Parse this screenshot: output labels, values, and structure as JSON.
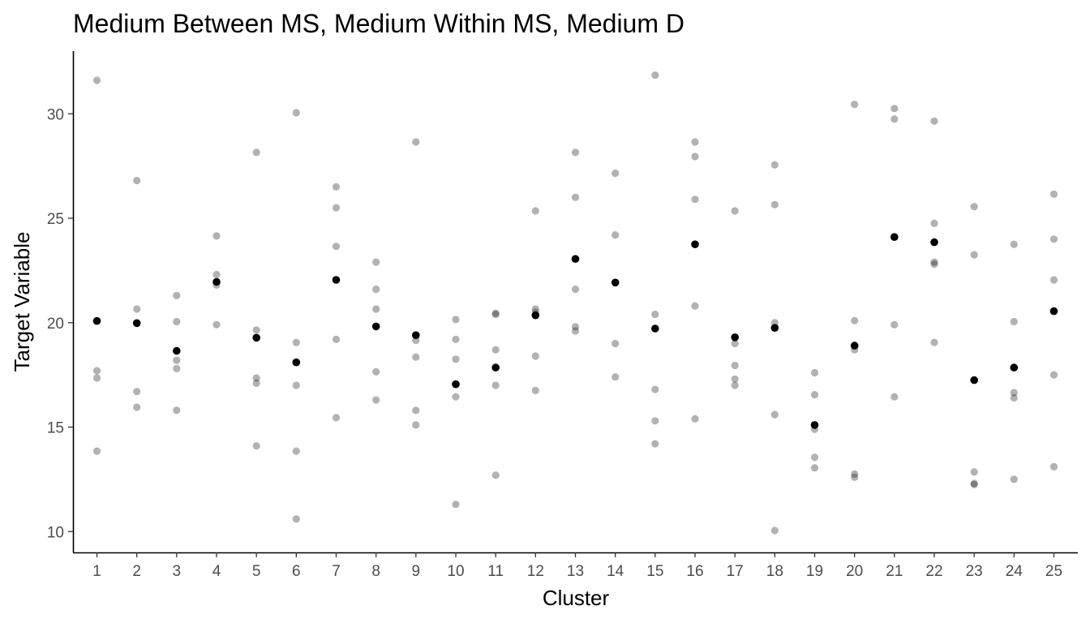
{
  "chart_data": {
    "type": "scatter",
    "title": "Medium Between MS, Medium Within MS, Medium D",
    "xlabel": "Cluster",
    "ylabel": "Target Variable",
    "xlim": [
      0.4,
      25.6
    ],
    "ylim": [
      9.0,
      33.0
    ],
    "x_ticks": [
      1,
      2,
      3,
      4,
      5,
      6,
      7,
      8,
      9,
      10,
      11,
      12,
      13,
      14,
      15,
      16,
      17,
      18,
      19,
      20,
      21,
      22,
      23,
      24,
      25
    ],
    "y_ticks": [
      10,
      15,
      20,
      25,
      30
    ],
    "grid": false,
    "colors": {
      "observation": "#b3b3b3",
      "cluster_mean": "#000000"
    },
    "observations": [
      [
        1,
        31.6
      ],
      [
        1,
        17.7
      ],
      [
        1,
        17.35
      ],
      [
        1,
        13.85
      ],
      [
        2,
        26.8
      ],
      [
        2,
        20.65
      ],
      [
        2,
        16.7
      ],
      [
        2,
        15.95
      ],
      [
        3,
        21.3
      ],
      [
        3,
        20.05
      ],
      [
        3,
        18.2
      ],
      [
        3,
        17.8
      ],
      [
        3,
        15.8
      ],
      [
        4,
        24.15
      ],
      [
        4,
        22.3
      ],
      [
        4,
        21.8
      ],
      [
        4,
        19.9
      ],
      [
        5,
        28.15
      ],
      [
        5,
        19.65
      ],
      [
        5,
        17.35
      ],
      [
        5,
        17.1
      ],
      [
        5,
        14.1
      ],
      [
        6,
        30.05
      ],
      [
        6,
        19.05
      ],
      [
        6,
        17.0
      ],
      [
        6,
        13.85
      ],
      [
        6,
        10.6
      ],
      [
        7,
        26.5
      ],
      [
        7,
        25.5
      ],
      [
        7,
        23.65
      ],
      [
        7,
        19.2
      ],
      [
        7,
        15.45
      ],
      [
        8,
        22.9
      ],
      [
        8,
        21.6
      ],
      [
        8,
        20.65
      ],
      [
        8,
        17.65
      ],
      [
        8,
        16.3
      ],
      [
        9,
        28.65
      ],
      [
        9,
        19.15
      ],
      [
        9,
        18.35
      ],
      [
        9,
        15.8
      ],
      [
        9,
        15.1
      ],
      [
        10,
        20.15
      ],
      [
        10,
        19.2
      ],
      [
        10,
        18.25
      ],
      [
        10,
        16.45
      ],
      [
        10,
        11.3
      ],
      [
        11,
        20.45
      ],
      [
        11,
        20.4
      ],
      [
        11,
        18.7
      ],
      [
        11,
        17.0
      ],
      [
        11,
        12.7
      ],
      [
        12,
        20.65
      ],
      [
        12,
        20.5
      ],
      [
        12,
        18.4
      ],
      [
        12,
        16.75
      ],
      [
        12,
        25.35
      ],
      [
        13,
        28.15
      ],
      [
        13,
        26.0
      ],
      [
        13,
        21.6
      ],
      [
        13,
        19.8
      ],
      [
        13,
        19.6
      ],
      [
        14,
        27.15
      ],
      [
        14,
        24.2
      ],
      [
        14,
        19.0
      ],
      [
        14,
        17.4
      ],
      [
        15,
        31.85
      ],
      [
        15,
        20.4
      ],
      [
        15,
        16.8
      ],
      [
        15,
        15.3
      ],
      [
        15,
        14.2
      ],
      [
        16,
        28.65
      ],
      [
        16,
        27.95
      ],
      [
        16,
        25.9
      ],
      [
        16,
        20.8
      ],
      [
        16,
        15.4
      ],
      [
        17,
        25.35
      ],
      [
        17,
        19.0
      ],
      [
        17,
        17.95
      ],
      [
        17,
        17.3
      ],
      [
        17,
        17.0
      ],
      [
        18,
        27.55
      ],
      [
        18,
        25.65
      ],
      [
        18,
        20.0
      ],
      [
        18,
        15.6
      ],
      [
        18,
        10.05
      ],
      [
        19,
        17.6
      ],
      [
        19,
        16.55
      ],
      [
        19,
        14.9
      ],
      [
        19,
        13.55
      ],
      [
        19,
        13.05
      ],
      [
        20,
        30.45
      ],
      [
        20,
        20.1
      ],
      [
        20,
        18.7
      ],
      [
        20,
        12.75
      ],
      [
        20,
        12.6
      ],
      [
        21,
        30.25
      ],
      [
        21,
        29.75
      ],
      [
        21,
        19.9
      ],
      [
        21,
        16.45
      ],
      [
        22,
        29.65
      ],
      [
        22,
        24.75
      ],
      [
        22,
        22.9
      ],
      [
        22,
        22.8
      ],
      [
        22,
        19.05
      ],
      [
        23,
        25.55
      ],
      [
        23,
        23.25
      ],
      [
        23,
        12.85
      ],
      [
        23,
        12.3
      ],
      [
        23,
        12.25
      ],
      [
        24,
        23.75
      ],
      [
        24,
        20.05
      ],
      [
        24,
        16.65
      ],
      [
        24,
        16.4
      ],
      [
        24,
        12.5
      ],
      [
        25,
        26.15
      ],
      [
        25,
        24.0
      ],
      [
        25,
        22.05
      ],
      [
        25,
        17.5
      ],
      [
        25,
        13.1
      ]
    ],
    "cluster_means": [
      [
        1,
        20.08
      ],
      [
        2,
        19.98
      ],
      [
        3,
        18.65
      ],
      [
        4,
        21.95
      ],
      [
        5,
        19.28
      ],
      [
        6,
        18.1
      ],
      [
        7,
        22.05
      ],
      [
        8,
        19.82
      ],
      [
        9,
        19.4
      ],
      [
        10,
        17.05
      ],
      [
        11,
        17.85
      ],
      [
        12,
        20.35
      ],
      [
        13,
        23.05
      ],
      [
        14,
        21.92
      ],
      [
        15,
        19.72
      ],
      [
        16,
        23.75
      ],
      [
        17,
        19.3
      ],
      [
        18,
        19.75
      ],
      [
        19,
        15.1
      ],
      [
        20,
        18.9
      ],
      [
        21,
        24.1
      ],
      [
        22,
        23.85
      ],
      [
        23,
        17.25
      ],
      [
        24,
        17.85
      ],
      [
        25,
        20.55
      ]
    ]
  }
}
